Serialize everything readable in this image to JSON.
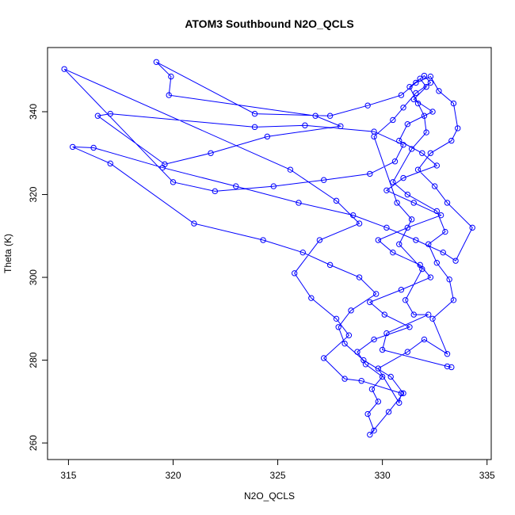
{
  "chart_data": {
    "type": "line",
    "title": "ATOM3 Southbound N2O_QCLS",
    "x_label": "N2O_QCLS",
    "y_label": "Theta (K)",
    "color": "#0000ff",
    "markers": true,
    "xlim": [
      314.0,
      335.2
    ],
    "ylim": [
      256,
      355.5
    ],
    "xticks": [
      315,
      320,
      325,
      330,
      335
    ],
    "yticks": [
      260,
      280,
      300,
      320,
      340
    ],
    "x": [
      331.8,
      332.1,
      331.5,
      332.4,
      331.2,
      330.8,
      331.9,
      332.6,
      331.0,
      330.2,
      331.5,
      332.8,
      331.2,
      329.8,
      330.5,
      331.8,
      332.3,
      330.9,
      329.4,
      330.1,
      331.3,
      329.6,
      328.8,
      329.2,
      330.0,
      329.5,
      329.8,
      329.3,
      329.6,
      329.4,
      330.3,
      331.0,
      330.4,
      329.1,
      328.2,
      327.9,
      328.5,
      329.7,
      328.9,
      327.5,
      326.2,
      324.3,
      321.0,
      317.0,
      315.2,
      316.2,
      319.5,
      323.0,
      326.0,
      328.6,
      330.2,
      331.6,
      332.9,
      333.5,
      334.3,
      333.1,
      332.5,
      331.7,
      332.3,
      333.3,
      333.6,
      333.4,
      332.7,
      332.3,
      331.6,
      330.9,
      329.3,
      327.5,
      323.9,
      319.2,
      319.9,
      319.8,
      326.8,
      328.0,
      324.5,
      321.8,
      319.6,
      316.4,
      317.0,
      323.9,
      326.3,
      329.6,
      331.0,
      330.6,
      329.4,
      327.2,
      324.8,
      322.0,
      320.0,
      314.8,
      325.6,
      327.8,
      328.9,
      327.0,
      325.8,
      326.6,
      327.8,
      328.4,
      327.2,
      328.2,
      329.0,
      330.9,
      330.8,
      329.8,
      331.2,
      332.0,
      333.1,
      332.4,
      333.4,
      333.2,
      332.6,
      332.2,
      333.0,
      332.6,
      331.2,
      330.5,
      331.4,
      332.1,
      332.0,
      331.7,
      331.3,
      332.0,
      332.3,
      331.6,
      331.0,
      330.5,
      329.6,
      330.7,
      331.4,
      330.8,
      331.9,
      331.1,
      331.5,
      332.2,
      330.2,
      330.0,
      333.1,
      333.3
    ],
    "values": [
      348,
      346,
      343,
      340,
      337,
      333,
      330,
      327,
      324,
      321,
      318,
      315,
      312,
      309,
      306,
      303,
      300,
      297,
      294,
      291,
      288,
      285,
      282,
      279,
      276,
      273,
      270,
      267,
      263,
      262,
      267.5,
      272,
      276,
      280,
      284,
      288,
      292,
      296,
      300,
      303,
      306,
      309,
      313,
      327.5,
      331.5,
      331.3,
      326.5,
      322,
      318,
      315,
      312,
      309,
      306,
      304,
      312,
      318,
      322,
      326,
      330,
      333,
      336,
      342,
      345,
      348.5,
      347,
      344,
      341.5,
      339,
      339.5,
      352,
      348.5,
      344,
      339,
      336.5,
      334,
      330,
      327.3,
      339,
      339.5,
      336.3,
      336.7,
      335.2,
      332,
      328,
      325,
      323.5,
      322,
      320.8,
      323,
      350.3,
      326,
      318.5,
      313,
      309,
      301,
      295,
      290,
      286,
      280.5,
      275.5,
      275,
      272,
      269.7,
      278,
      282,
      285,
      281.5,
      290,
      294.5,
      299.5,
      303.5,
      308,
      311,
      316,
      320,
      323,
      331,
      335,
      339,
      342,
      346,
      348.7,
      347,
      344.5,
      341,
      338,
      334,
      318,
      314,
      308,
      302,
      294.5,
      291,
      291,
      286.5,
      282.5,
      278.5,
      278.3
    ]
  }
}
